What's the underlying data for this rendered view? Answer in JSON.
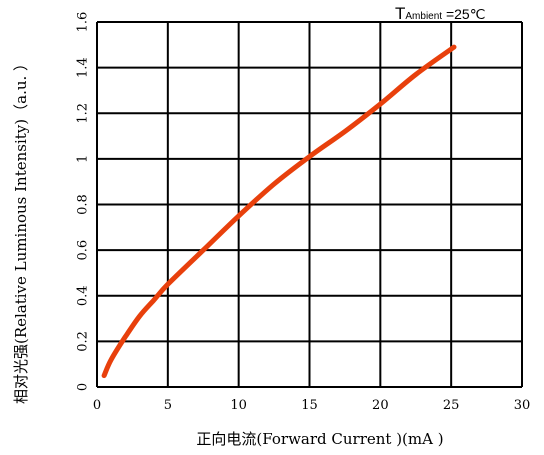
{
  "chart_data": {
    "type": "line",
    "title": "",
    "xlabel": "正向电流(Forward Current )(mA )",
    "ylabel": "相对光强(Relative Luminous Intensity)（a.u. ）",
    "xlim": [
      0,
      30
    ],
    "ylim": [
      0,
      1.6
    ],
    "xticks": [
      "0",
      "5",
      "10",
      "15",
      "20",
      "25",
      "30"
    ],
    "yticks": [
      "0",
      "0.2",
      "0.4",
      "0.6",
      "0.8",
      "1",
      "1.2",
      "1.4",
      "1.6"
    ],
    "grid": true,
    "annotation": {
      "prefix": "T",
      "sub": "Ambient",
      "suffix": " =25℃"
    },
    "series": [
      {
        "color": "#e8400c",
        "x": [
          0.5,
          1,
          2,
          3,
          4,
          5,
          7.5,
          10,
          12.5,
          15,
          17.5,
          20,
          22.5,
          25.2
        ],
        "y": [
          0.05,
          0.12,
          0.22,
          0.31,
          0.38,
          0.45,
          0.6,
          0.75,
          0.89,
          1.01,
          1.12,
          1.24,
          1.37,
          1.49
        ]
      }
    ]
  }
}
